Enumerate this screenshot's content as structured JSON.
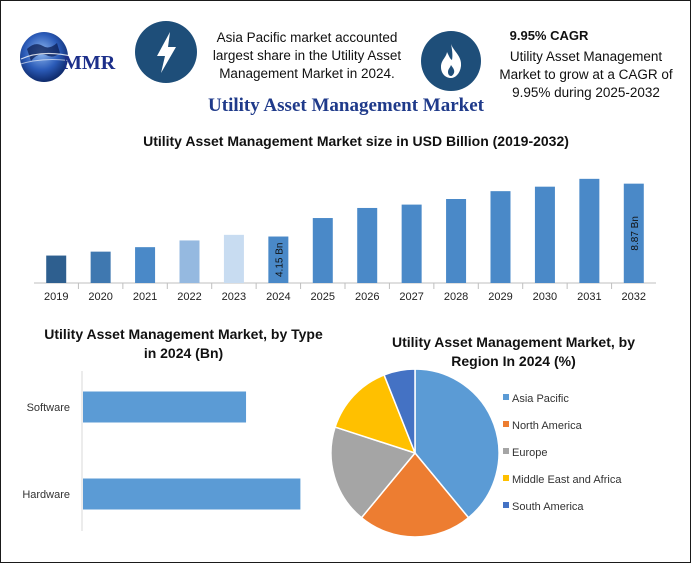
{
  "brand": {
    "logo_text": "MMR"
  },
  "header": {
    "left_icon": "lightning-bolt-icon",
    "left_text": "Asia Pacific market accounted largest share in the Utility Asset Management Market in 2024.",
    "right_icon": "flame-icon",
    "cagr_label": "9.95% CAGR",
    "right_text": "Utility Asset Management Market to grow at a CAGR of 9.95% during 2025-2032"
  },
  "main_title": "Utility Asset Management Market",
  "chart_data": [
    {
      "type": "bar",
      "title": "Utility Asset Management Market size in USD Billion (2019-2032)",
      "categories": [
        "2019",
        "2020",
        "2021",
        "2022",
        "2023",
        "2024",
        "2025",
        "2026",
        "2027",
        "2028",
        "2029",
        "2030",
        "2031",
        "2032"
      ],
      "values": [
        2.45,
        2.8,
        3.2,
        3.8,
        4.3,
        4.15,
        5.8,
        6.7,
        7.0,
        7.5,
        8.2,
        8.6,
        9.3,
        8.87
      ],
      "data_labels": {
        "2024": "4.15 Bn",
        "2032": "8.87 Bn"
      },
      "colors": [
        "#2e5f8f",
        "#3f78b0",
        "#4a89c8",
        "#95b9e0",
        "#c8dcf1",
        "#4a89c8",
        "#4a89c8",
        "#4a89c8",
        "#4a89c8",
        "#4a89c8",
        "#4a89c8",
        "#4a89c8",
        "#4a89c8",
        "#4a89c8"
      ],
      "ylim": [
        0,
        10
      ],
      "grid": false
    },
    {
      "type": "bar",
      "orientation": "horizontal",
      "title": "Utility Asset Management Market, by Type in 2024 (Bn)",
      "categories": [
        "Software",
        "Hardware"
      ],
      "values": [
        1.5,
        2.0
      ],
      "xlim": [
        0,
        2.3
      ],
      "color": "#5b9bd5"
    },
    {
      "type": "pie",
      "title": "Utility Asset Management Market, by Region In 2024 (%)",
      "labels": [
        "Asia Pacific",
        "North America",
        "Europe",
        "Middle East and Africa",
        "South America"
      ],
      "values": [
        39,
        22,
        19,
        14,
        6
      ],
      "colors": [
        "#5b9bd5",
        "#ed7d31",
        "#a5a5a5",
        "#ffc000",
        "#4472c4"
      ],
      "legend": "right"
    }
  ]
}
